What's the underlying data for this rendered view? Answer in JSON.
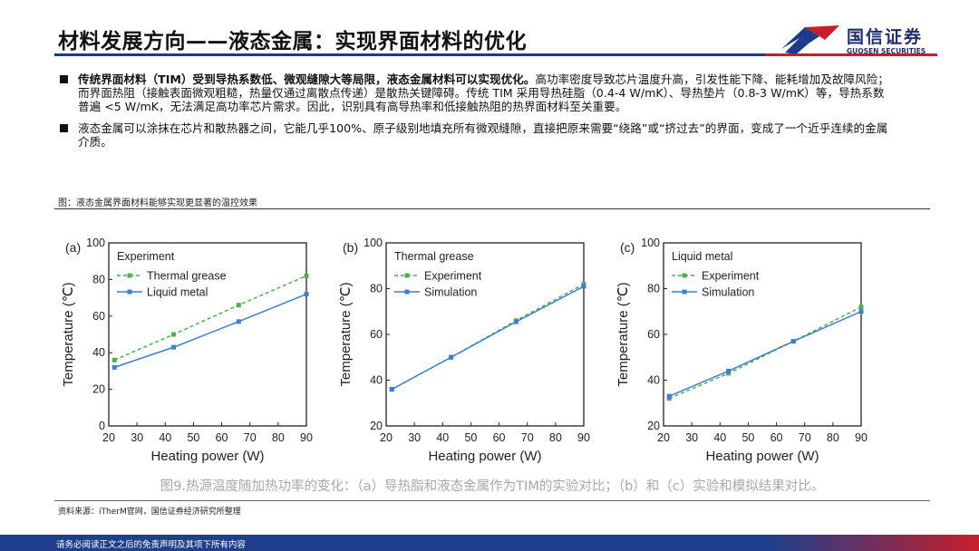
{
  "page": {
    "title": "材料发展方向——液态金属：实现界面材料的优化",
    "logo_cn": "国信证券",
    "logo_en": "GUOSEN SECURITIES"
  },
  "bullets": [
    {
      "bold": "传统界面材料（TIM）受到导热系数低、微观缝隙大等局限，液态金属材料可以实现优化。",
      "text": "高功率密度导致芯片温度升高，引发性能下降、能耗增加及故障风险；而界面热阻（接触表面微观粗糙，热量仅通过离散点传递）是散热关键障碍。传统 TIM 采用导热硅脂（0.4-4 W/mK）、导热垫片（0.8-3 W/mK）等，导热系数普遍 <5 W/mK，无法满足高功率芯片需求。因此，识别具有高导热率和低接触热阻的热界面材料至关重要。"
    },
    {
      "bold": "",
      "text": "液态金属可以涂抹在芯片和散热器之间，它能几乎100%、原子级别地填充所有微观缝隙，直接把原来需要“绕路”或“挤过去”的界面，变成了一个近乎连续的金属介质。"
    }
  ],
  "figure": {
    "caption": "图：液态金属界面材料能够实现更显著的温控效果",
    "subcaption": "图9.热源温度随加热功率的变化：（a）导热脂和液态金属作为TIM的实验对比；（b）和（c）实验和模拟结果对比。"
  },
  "source": "资料来源：iTherM官网，国信证券经济研究所整理",
  "footer": "请务必阅读正文之后的免责声明及其项下所有内容",
  "colors": {
    "brand_blue": "#1e3a8a",
    "brand_red": "#c81e2c",
    "green_series": "#4caf50",
    "blue_series": "#3a7fd0",
    "faded_text": "#a8a8a8"
  },
  "chart_data": [
    {
      "panel": "(a)",
      "type": "line",
      "legend_title": "Experiment",
      "legend_position": "top-left",
      "xlabel": "Heating power (W)",
      "ylabel": "Temperature (℃)",
      "xlim": [
        20,
        90
      ],
      "ylim": [
        0,
        100
      ],
      "xticks": [
        20,
        30,
        40,
        50,
        60,
        70,
        80,
        90
      ],
      "yticks": [
        0,
        20,
        40,
        60,
        80,
        100
      ],
      "series": [
        {
          "name": "Thermal grease",
          "style": "dashed",
          "color": "#4caf50",
          "x": [
            22,
            43,
            66,
            90
          ],
          "y": [
            36,
            50,
            66,
            82
          ]
        },
        {
          "name": "Liquid metal",
          "style": "solid",
          "color": "#3a7fd0",
          "x": [
            22,
            43,
            66,
            90
          ],
          "y": [
            32,
            43,
            57,
            72
          ]
        }
      ]
    },
    {
      "panel": "(b)",
      "type": "line",
      "legend_title": "Thermal grease",
      "legend_position": "top-left",
      "xlabel": "Heating power (W)",
      "ylabel": "Temperature (℃)",
      "xlim": [
        20,
        90
      ],
      "ylim": [
        20,
        100
      ],
      "xticks": [
        20,
        30,
        40,
        50,
        60,
        70,
        80,
        90
      ],
      "yticks": [
        20,
        40,
        60,
        80,
        100
      ],
      "series": [
        {
          "name": "Experiment",
          "style": "dashed",
          "color": "#4caf50",
          "x": [
            22,
            43,
            66,
            90
          ],
          "y": [
            36,
            50,
            66,
            82
          ]
        },
        {
          "name": "Simulation",
          "style": "solid",
          "color": "#3a7fd0",
          "x": [
            22,
            43,
            66,
            90
          ],
          "y": [
            36,
            50,
            65.5,
            81
          ]
        }
      ]
    },
    {
      "panel": "(c)",
      "type": "line",
      "legend_title": "Liquid metal",
      "legend_position": "top-left",
      "xlabel": "Heating power (W)",
      "ylabel": "Temperature (℃)",
      "xlim": [
        20,
        90
      ],
      "ylim": [
        20,
        100
      ],
      "xticks": [
        20,
        30,
        40,
        50,
        60,
        70,
        80,
        90
      ],
      "yticks": [
        20,
        40,
        60,
        80,
        100
      ],
      "series": [
        {
          "name": "Experiment",
          "style": "dashed",
          "color": "#4caf50",
          "x": [
            22,
            43,
            66,
            90
          ],
          "y": [
            32,
            43,
            57,
            72
          ]
        },
        {
          "name": "Simulation",
          "style": "solid",
          "color": "#3a7fd0",
          "x": [
            22,
            43,
            66,
            90
          ],
          "y": [
            33,
            44,
            57,
            70
          ]
        }
      ]
    }
  ]
}
